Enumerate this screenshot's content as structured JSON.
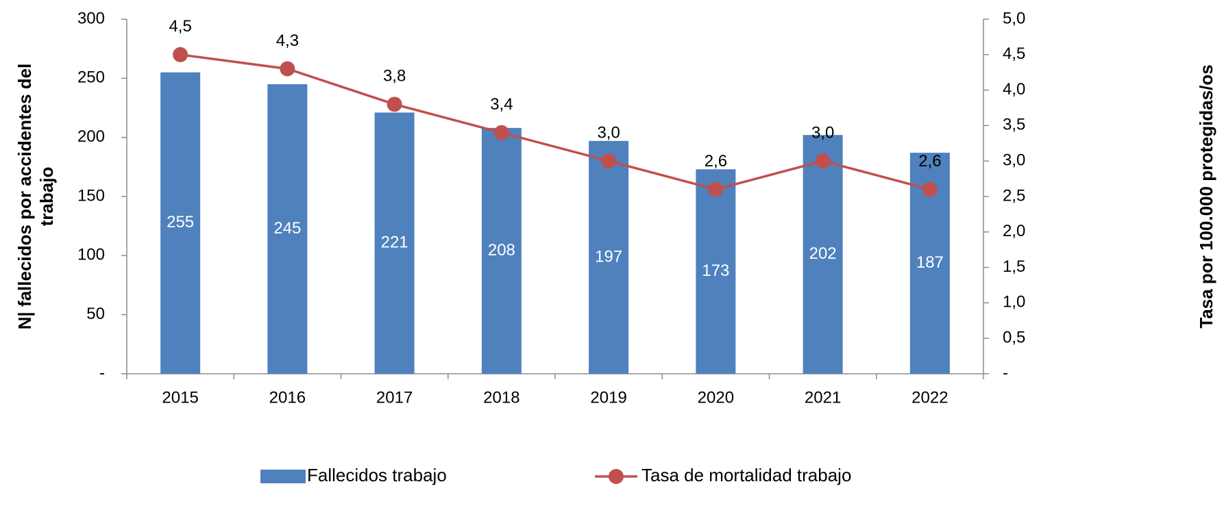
{
  "chart_data": {
    "type": "bar-line",
    "categories": [
      "2015",
      "2016",
      "2017",
      "2018",
      "2019",
      "2020",
      "2021",
      "2022"
    ],
    "ylabel": [
      "N| fallecidos por accidentes del",
      "trabajo"
    ],
    "y2label": "Tasa por 100.000 protegidas/os",
    "ylim": [
      0,
      300
    ],
    "yticks": [
      {
        "value": 0,
        "label": "-"
      },
      50,
      100,
      150,
      200,
      250,
      300
    ],
    "y2lim": [
      0,
      5
    ],
    "y2ticks": [
      {
        "value": 0,
        "label": "-"
      },
      {
        "value": 0.5,
        "label": "0,5"
      },
      {
        "value": 1,
        "label": "1,0"
      },
      {
        "value": 1.5,
        "label": "1,5"
      },
      {
        "value": 2,
        "label": "2,0"
      },
      {
        "value": 2.5,
        "label": "2,5"
      },
      {
        "value": 3,
        "label": "3,0"
      },
      {
        "value": 3.5,
        "label": "3,5"
      },
      {
        "value": 4,
        "label": "4,0"
      },
      {
        "value": 4.5,
        "label": "4,5"
      },
      {
        "value": 5,
        "label": "5,0"
      }
    ],
    "series": [
      {
        "name": "Fallecidos trabajo",
        "type": "bar",
        "color": "#4f81bd",
        "values": [
          255,
          245,
          221,
          208,
          197,
          173,
          202,
          187
        ]
      },
      {
        "name": "Tasa de mortalidad trabajo",
        "type": "line",
        "axis": "y2",
        "color": "#c0504d",
        "values": [
          4.5,
          4.3,
          3.8,
          3.4,
          3.0,
          2.6,
          3.0,
          2.6
        ],
        "value_labels": [
          "4,5",
          "4,3",
          "3,8",
          "3,4",
          "3,0",
          "2,6",
          "3,0",
          "2,6"
        ]
      }
    ]
  }
}
